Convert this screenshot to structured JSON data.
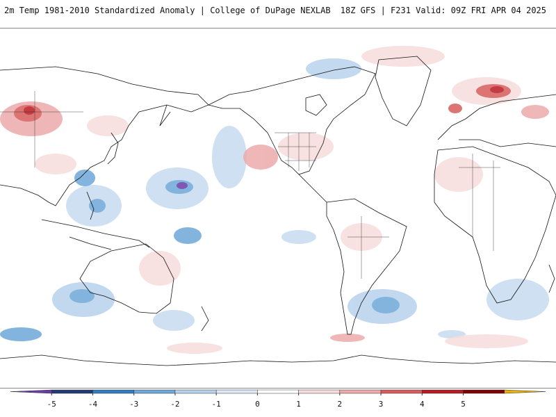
{
  "header": {
    "title": "2m Temp 1981-2010 Standardized Anomaly | College of DuPage NEXLAB",
    "run_info": "18Z GFS | F231 Valid: 09Z FRI APR 04 2025"
  },
  "map": {
    "projection": "global cylindrical, Pacific-centered",
    "field": "2m temperature standardized anomaly"
  },
  "colorbar": {
    "ticks": [
      "-5",
      "-4",
      "-3",
      "-2",
      "-1",
      "0",
      "1",
      "2",
      "3",
      "4",
      "5"
    ],
    "colors": [
      "#6a3ba8",
      "#233a73",
      "#2f7cc1",
      "#6ea7d8",
      "#b8d2ec",
      "#dce8f5",
      "#ffffff",
      "#f7dcdc",
      "#ecaaaa",
      "#d85c5c",
      "#b81b22",
      "#800000",
      "#e8b000"
    ]
  }
}
